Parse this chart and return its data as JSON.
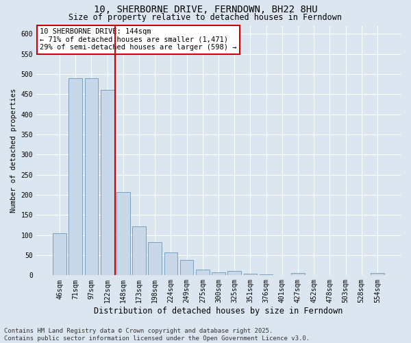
{
  "title": "10, SHERBORNE DRIVE, FERNDOWN, BH22 8HU",
  "subtitle": "Size of property relative to detached houses in Ferndown",
  "xlabel": "Distribution of detached houses by size in Ferndown",
  "ylabel": "Number of detached properties",
  "categories": [
    "46sqm",
    "71sqm",
    "97sqm",
    "122sqm",
    "148sqm",
    "173sqm",
    "198sqm",
    "224sqm",
    "249sqm",
    "275sqm",
    "300sqm",
    "325sqm",
    "351sqm",
    "376sqm",
    "401sqm",
    "427sqm",
    "452sqm",
    "478sqm",
    "503sqm",
    "528sqm",
    "554sqm"
  ],
  "values": [
    105,
    490,
    490,
    460,
    207,
    122,
    82,
    57,
    38,
    14,
    8,
    11,
    4,
    2,
    0,
    5,
    0,
    0,
    0,
    0,
    6
  ],
  "bar_color": "#c8d8e8",
  "bar_edge_color": "#5588aa",
  "vline_x_index": 4,
  "vline_color": "#cc0000",
  "annotation_box_text": "10 SHERBORNE DRIVE: 144sqm\n← 71% of detached houses are smaller (1,471)\n29% of semi-detached houses are larger (598) →",
  "annotation_box_color": "#cc0000",
  "annotation_box_bg": "#ffffff",
  "footer_text": "Contains HM Land Registry data © Crown copyright and database right 2025.\nContains public sector information licensed under the Open Government Licence v3.0.",
  "bg_color": "#dce6f0",
  "plot_bg_color": "#dce6f0",
  "grid_color": "#ffffff",
  "ylim": [
    0,
    620
  ],
  "yticks": [
    0,
    50,
    100,
    150,
    200,
    250,
    300,
    350,
    400,
    450,
    500,
    550,
    600
  ],
  "title_fontsize": 10,
  "subtitle_fontsize": 8.5,
  "tick_fontsize": 7,
  "ylabel_fontsize": 7.5,
  "xlabel_fontsize": 8.5,
  "footer_fontsize": 6.5,
  "annot_fontsize": 7.5
}
